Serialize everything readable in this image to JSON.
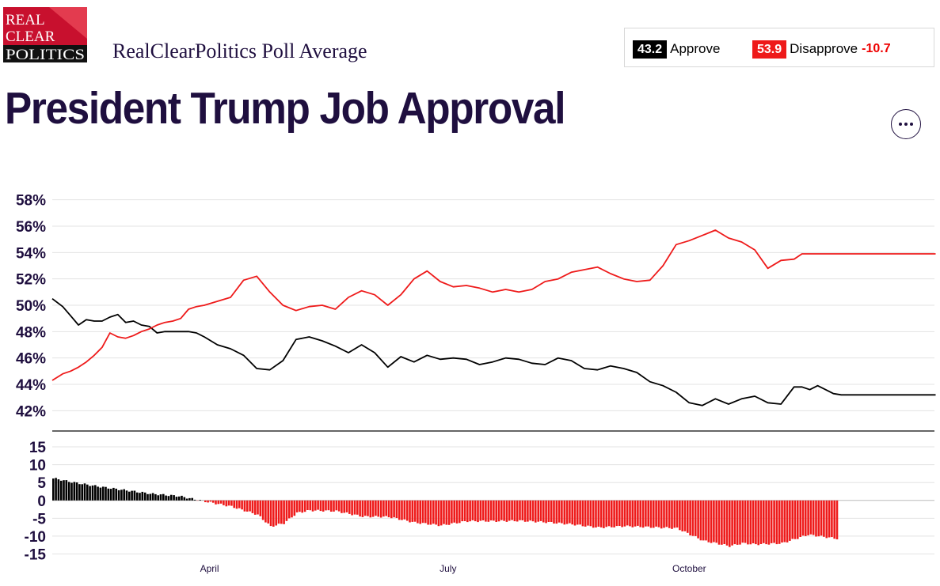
{
  "logo": {
    "lines": [
      "REAL",
      "CLEAR",
      "POLITICS"
    ]
  },
  "header": {
    "subtitle": "RealClearPolitics Poll Average"
  },
  "summary": {
    "approve_value": "43.2",
    "approve_label": "Approve",
    "disapprove_value": "53.9",
    "disapprove_label": "Disapprove",
    "spread": "-10.7"
  },
  "title": "President Trump Job Approval",
  "colors": {
    "approve": "#000000",
    "disapprove": "#ee1a1a",
    "text": "#1f0f3f"
  },
  "menu": {
    "icon": "more-options-icon"
  },
  "chart_data": [
    {
      "type": "line",
      "ylim": [
        41,
        59
      ],
      "yticks": [
        "58%",
        "56%",
        "54%",
        "52%",
        "50%",
        "48%",
        "46%",
        "44%",
        "42%"
      ],
      "ytick_values": [
        58,
        56,
        54,
        52,
        50,
        48,
        46,
        44,
        42
      ],
      "xlabels": [
        "April",
        "July",
        "October"
      ],
      "xlabel_days": [
        82,
        173,
        265
      ],
      "grid": true,
      "series": [
        {
          "name": "Approve",
          "color": "#000000",
          "x": [
            22,
            26,
            29,
            32,
            35,
            38,
            41,
            44,
            47,
            50,
            53,
            56,
            59,
            62,
            65,
            68,
            71,
            74,
            77,
            80,
            85,
            90,
            95,
            100,
            105,
            110,
            115,
            120,
            125,
            130,
            135,
            140,
            145,
            150,
            155,
            160,
            165,
            170,
            175,
            180,
            185,
            190,
            195,
            200,
            205,
            210,
            215,
            220,
            225,
            230,
            235,
            240,
            245,
            250,
            255,
            260,
            265,
            270,
            275,
            280,
            285,
            290,
            295,
            300,
            305,
            308,
            311,
            314,
            317,
            320,
            323,
            326,
            329,
            332,
            335,
            338,
            341,
            344,
            347,
            350,
            353,
            356,
            359
          ],
          "values": [
            50.5,
            49.9,
            49.2,
            48.5,
            48.9,
            48.8,
            48.8,
            49.1,
            49.3,
            48.7,
            48.8,
            48.5,
            48.4,
            47.9,
            48.0,
            48.0,
            48.0,
            48.0,
            47.9,
            47.6,
            47.0,
            46.7,
            46.2,
            45.2,
            45.1,
            45.8,
            47.4,
            47.6,
            47.3,
            46.9,
            46.4,
            47.0,
            46.4,
            45.3,
            46.1,
            45.7,
            46.2,
            45.9,
            46.0,
            45.9,
            45.5,
            45.7,
            46.0,
            45.9,
            45.6,
            45.5,
            46.0,
            45.8,
            45.2,
            45.1,
            45.4,
            45.2,
            44.9,
            44.2,
            43.9,
            43.4,
            42.6,
            42.4,
            42.9,
            42.5,
            42.9,
            43.1,
            42.6,
            42.5,
            43.8,
            43.8,
            43.6,
            43.9,
            43.6,
            43.3,
            43.2,
            43.2,
            43.2,
            43.2,
            43.2,
            43.2,
            43.2,
            43.2,
            43.2,
            43.2,
            43.2,
            43.2,
            43.2
          ]
        },
        {
          "name": "Disapprove",
          "color": "#ee1a1a",
          "x": [
            22,
            26,
            29,
            32,
            35,
            38,
            41,
            44,
            47,
            50,
            53,
            56,
            59,
            62,
            65,
            68,
            71,
            74,
            77,
            80,
            85,
            90,
            95,
            100,
            105,
            110,
            115,
            120,
            125,
            130,
            135,
            140,
            145,
            150,
            155,
            160,
            165,
            170,
            175,
            180,
            185,
            190,
            195,
            200,
            205,
            210,
            215,
            220,
            225,
            230,
            235,
            240,
            245,
            250,
            255,
            260,
            265,
            270,
            275,
            280,
            285,
            290,
            295,
            300,
            305,
            308,
            311,
            314,
            317,
            320,
            323,
            326,
            329,
            332,
            335,
            338,
            341,
            344,
            347,
            350,
            353,
            356,
            359
          ],
          "values": [
            44.3,
            44.8,
            45.0,
            45.3,
            45.7,
            46.2,
            46.8,
            47.9,
            47.6,
            47.5,
            47.7,
            48.0,
            48.2,
            48.5,
            48.7,
            48.8,
            49.0,
            49.7,
            49.9,
            50.0,
            50.3,
            50.6,
            51.9,
            52.2,
            51.0,
            50.0,
            49.6,
            49.9,
            50.0,
            49.7,
            50.6,
            51.1,
            50.8,
            50.0,
            50.8,
            52.0,
            52.6,
            51.8,
            51.4,
            51.5,
            51.3,
            51.0,
            51.2,
            51.0,
            51.2,
            51.8,
            52.0,
            52.5,
            52.7,
            52.9,
            52.4,
            52.0,
            51.8,
            51.9,
            53.0,
            54.6,
            54.9,
            55.3,
            55.7,
            55.1,
            54.8,
            54.2,
            52.8,
            53.4,
            53.5,
            53.9,
            53.9,
            53.9,
            53.9,
            53.9,
            53.9,
            53.9,
            53.9,
            53.9,
            53.9,
            53.9,
            53.9,
            53.9,
            53.9,
            53.9,
            53.9,
            53.9,
            53.9
          ]
        }
      ]
    },
    {
      "type": "bar",
      "ylim": [
        -16,
        19
      ],
      "yticks": [
        "15",
        "10",
        "5",
        "0",
        "-5",
        "-10",
        "-15"
      ],
      "ytick_values": [
        15,
        10,
        5,
        0,
        -5,
        -10,
        -15
      ],
      "grid": true,
      "series": [
        {
          "name": "Spread",
          "x_start": 22,
          "x_end": 321,
          "x_step": 1,
          "key_days": [
            22,
            30,
            40,
            50,
            60,
            70,
            80,
            90,
            100,
            105,
            110,
            115,
            120,
            130,
            140,
            150,
            160,
            170,
            180,
            190,
            200,
            210,
            220,
            230,
            240,
            250,
            260,
            270,
            275,
            280,
            285,
            290,
            300,
            310,
            315,
            321
          ],
          "key_values": [
            6.2,
            5.0,
            3.8,
            2.8,
            1.8,
            1.2,
            -0.3,
            -1.7,
            -4.0,
            -7.3,
            -6.4,
            -3.5,
            -2.8,
            -3.0,
            -4.5,
            -4.6,
            -6.2,
            -7.0,
            -5.8,
            -5.8,
            -5.7,
            -6.1,
            -6.7,
            -7.6,
            -7.2,
            -7.5,
            -7.8,
            -11.3,
            -12.0,
            -12.8,
            -12.0,
            -12.3,
            -12.0,
            -9.6,
            -10.1,
            -10.7
          ],
          "positive_color": "#000000",
          "negative_color": "#ee1a1a"
        }
      ]
    }
  ]
}
